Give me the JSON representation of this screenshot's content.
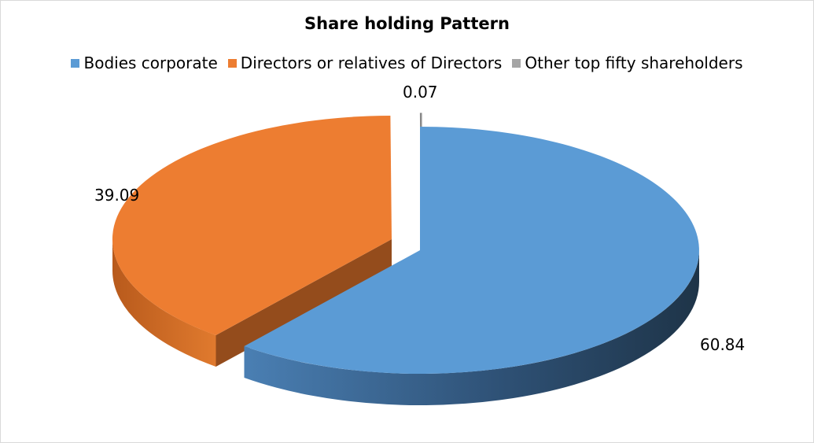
{
  "chart_data": {
    "type": "pie",
    "title": "Share holding Pattern",
    "labels": [
      "Bodies corporate",
      "Directors or relatives of Directors",
      "Other top fifty shareholders"
    ],
    "values": [
      60.84,
      39.09,
      0.07
    ],
    "data_labels": [
      "60.84",
      "39.09",
      "0.07"
    ],
    "colors": [
      "#5b9bd5",
      "#ed7d31",
      "#a5a5a5"
    ],
    "legend_position": "top",
    "style": "3d-exploded"
  }
}
